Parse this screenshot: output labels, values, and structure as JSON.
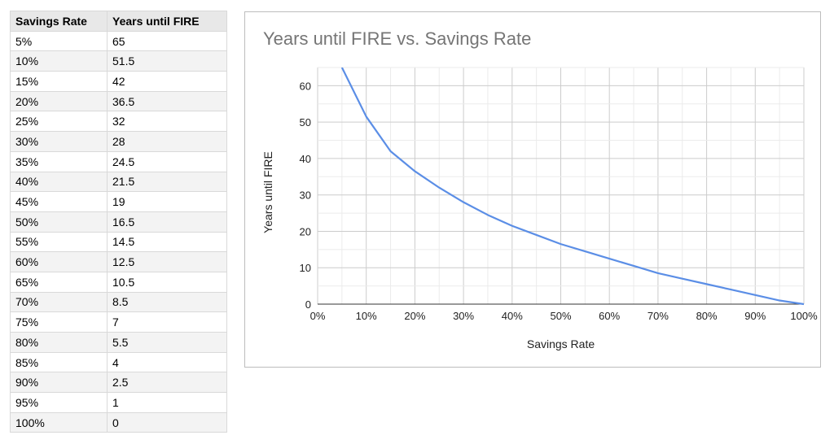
{
  "table": {
    "headers": [
      "Savings Rate",
      "Years until FIRE"
    ],
    "rows": [
      [
        "5%",
        "65"
      ],
      [
        "10%",
        "51.5"
      ],
      [
        "15%",
        "42"
      ],
      [
        "20%",
        "36.5"
      ],
      [
        "25%",
        "32"
      ],
      [
        "30%",
        "28"
      ],
      [
        "35%",
        "24.5"
      ],
      [
        "40%",
        "21.5"
      ],
      [
        "45%",
        "19"
      ],
      [
        "50%",
        "16.5"
      ],
      [
        "55%",
        "14.5"
      ],
      [
        "60%",
        "12.5"
      ],
      [
        "65%",
        "10.5"
      ],
      [
        "70%",
        "8.5"
      ],
      [
        "75%",
        "7"
      ],
      [
        "80%",
        "5.5"
      ],
      [
        "85%",
        "4"
      ],
      [
        "90%",
        "2.5"
      ],
      [
        "95%",
        "1"
      ],
      [
        "100%",
        "0"
      ]
    ]
  },
  "chart_data": {
    "type": "line",
    "title": "Years until FIRE vs. Savings Rate",
    "xlabel": "Savings Rate",
    "ylabel": "Years until FIRE",
    "x": [
      5,
      10,
      15,
      20,
      25,
      30,
      35,
      40,
      45,
      50,
      55,
      60,
      65,
      70,
      75,
      80,
      85,
      90,
      95,
      100
    ],
    "series": [
      {
        "values": [
          65,
          51.5,
          42,
          36.5,
          32,
          28,
          24.5,
          21.5,
          19,
          16.5,
          14.5,
          12.5,
          10.5,
          8.5,
          7,
          5.5,
          4,
          2.5,
          1,
          0
        ]
      }
    ],
    "xlim": [
      0,
      100
    ],
    "ylim": [
      0,
      65
    ],
    "x_ticks": [
      "0%",
      "10%",
      "20%",
      "30%",
      "40%",
      "50%",
      "60%",
      "70%",
      "80%",
      "90%",
      "100%"
    ],
    "y_ticks": [
      "0",
      "10",
      "20",
      "30",
      "40",
      "50",
      "60"
    ],
    "grid": true,
    "line_color": "#5b8ee6"
  }
}
